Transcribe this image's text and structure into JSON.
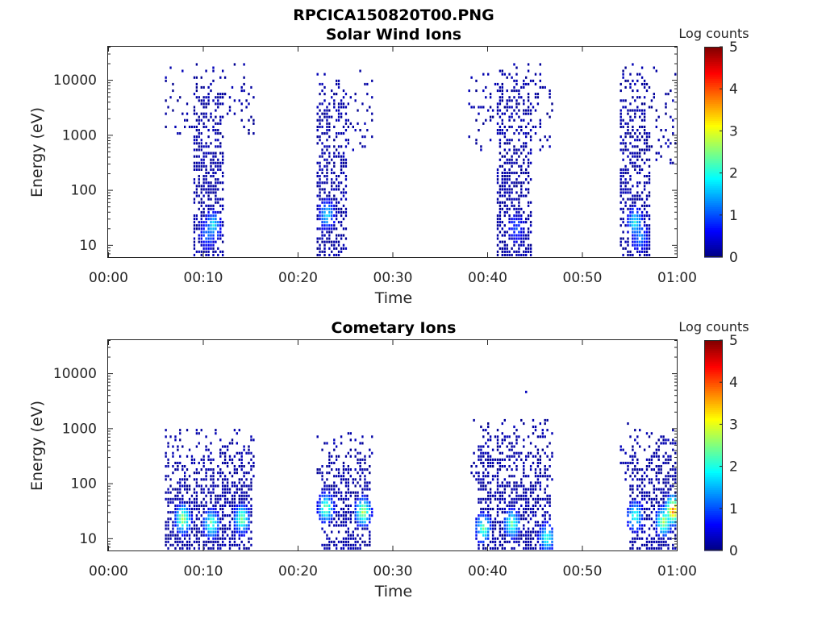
{
  "figure_title": "RPCICA150820T00.PNG",
  "chart_data": [
    {
      "type": "heatmap",
      "title": "Solar Wind Ions",
      "xlabel": "Time",
      "ylabel": "Energy (eV)",
      "xlim": [
        "00:00",
        "01:00"
      ],
      "xlim_minutes": [
        0,
        60
      ],
      "ylim": [
        6,
        40000
      ],
      "yscale": "log",
      "x_ticks": [
        "00:00",
        "00:10",
        "00:20",
        "00:30",
        "00:40",
        "00:50",
        "01:00"
      ],
      "y_ticks": [
        "10",
        "100",
        "1000",
        "10000"
      ],
      "y_tick_values": [
        10,
        100,
        1000,
        10000
      ],
      "colorbar": {
        "label": "Log counts",
        "range": [
          0,
          5
        ],
        "ticks": [
          "0",
          "1",
          "2",
          "3",
          "4",
          "5"
        ],
        "colormap": "jet"
      },
      "bursts": [
        {
          "start_min": 6,
          "end_min": 15.5,
          "core_start_min": 9,
          "core_end_min": 12,
          "emax": 20000,
          "low_cutoff": 1000,
          "peak": [
            {
              "t": 11,
              "e": 22,
              "c": 1.8
            },
            {
              "t": 10.4,
              "e": 15,
              "c": 1.2
            }
          ]
        },
        {
          "start_min": 22,
          "end_min": 28,
          "core_start_min": 22,
          "core_end_min": 25,
          "emax": 15000,
          "low_cutoff": 500,
          "peak": [
            {
              "t": 23,
              "e": 35,
              "c": 1.7
            }
          ]
        },
        {
          "start_min": 38,
          "end_min": 47,
          "core_start_min": 41,
          "core_end_min": 44.5,
          "emax": 20000,
          "low_cutoff": 500,
          "peak": [
            {
              "t": 43,
              "e": 20,
              "c": 0.9
            }
          ]
        },
        {
          "start_min": 54,
          "end_min": 60,
          "core_start_min": 54,
          "core_end_min": 57,
          "emax": 20000,
          "low_cutoff": 300,
          "peak": [
            {
              "t": 55.5,
              "e": 25,
              "c": 1.9
            },
            {
              "t": 56,
              "e": 14,
              "c": 1.3
            }
          ]
        }
      ]
    },
    {
      "type": "heatmap",
      "title": "Cometary Ions",
      "xlabel": "Time",
      "ylabel": "Energy (eV)",
      "xlim": [
        "00:00",
        "01:00"
      ],
      "xlim_minutes": [
        0,
        60
      ],
      "ylim": [
        6,
        40000
      ],
      "yscale": "log",
      "x_ticks": [
        "00:00",
        "00:10",
        "00:20",
        "00:30",
        "00:40",
        "00:50",
        "01:00"
      ],
      "y_ticks": [
        "10",
        "100",
        "1000",
        "10000"
      ],
      "y_tick_values": [
        10,
        100,
        1000,
        10000
      ],
      "colorbar": {
        "label": "Log counts",
        "range": [
          0,
          5
        ],
        "ticks": [
          "0",
          "1",
          "2",
          "3",
          "4",
          "5"
        ],
        "colormap": "jet"
      },
      "bursts": [
        {
          "start_min": 6,
          "end_min": 15.5,
          "core_start_min": 6,
          "core_end_min": 15,
          "emax": 1000,
          "low_cutoff": 100,
          "peak": [
            {
              "t": 7.8,
              "e": 22,
              "c": 2.8
            },
            {
              "t": 10.8,
              "e": 18,
              "c": 2.4
            },
            {
              "t": 14,
              "e": 22,
              "c": 2.6
            }
          ]
        },
        {
          "start_min": 22,
          "end_min": 28,
          "core_start_min": 22.5,
          "core_end_min": 27.5,
          "emax": 900,
          "low_cutoff": 100,
          "peak": [
            {
              "t": 22.9,
              "e": 35,
              "c": 2.5
            },
            {
              "t": 26.8,
              "e": 30,
              "c": 2.9
            }
          ]
        },
        {
          "start_min": 38,
          "end_min": 47,
          "core_start_min": 39,
          "core_end_min": 46.5,
          "emax": 1500,
          "low_cutoff": 100,
          "peak": [
            {
              "t": 39.5,
              "e": 15,
              "c": 2.4
            },
            {
              "t": 42.5,
              "e": 18,
              "c": 2.4
            },
            {
              "t": 46.2,
              "e": 10,
              "c": 2.1
            }
          ]
        },
        {
          "start_min": 54,
          "end_min": 60,
          "core_start_min": 55,
          "core_end_min": 60,
          "emax": 1200,
          "low_cutoff": 100,
          "peak": [
            {
              "t": 55.5,
              "e": 25,
              "c": 2.2
            },
            {
              "t": 59.5,
              "e": 32,
              "c": 4.0
            },
            {
              "t": 58.5,
              "e": 20,
              "c": 2.8
            }
          ]
        }
      ],
      "isolated_points": [
        {
          "t": 44,
          "e": 4500,
          "c": 0.3
        }
      ]
    }
  ]
}
